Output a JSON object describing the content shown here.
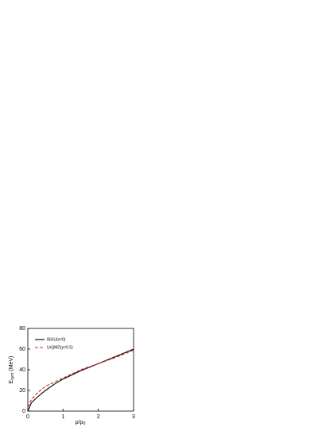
{
  "chart_data": {
    "type": "line",
    "y_label": {
      "main": "E",
      "sub": "sym",
      "unit": "(MeV)"
    },
    "x_label": {
      "main": "ρ/ρ",
      "sub": "0"
    },
    "x": [
      0,
      0.1,
      0.25,
      0.5,
      0.75,
      1,
      1.5,
      2,
      2.5,
      3
    ],
    "series": [
      {
        "name": "IBUU(x=0)",
        "color": "#000000",
        "dash": false,
        "values": [
          0,
          8,
          13,
          20,
          26,
          31,
          39,
          46,
          53,
          60
        ]
      },
      {
        "name": "UrQMD(γ=0.5)",
        "color": "#cc2222",
        "dash": true,
        "values": [
          4,
          11,
          17,
          24,
          28,
          32,
          40,
          46,
          52,
          59
        ]
      }
    ],
    "xlim": [
      0,
      3
    ],
    "xticks": [
      0,
      1,
      2,
      3
    ],
    "ylim": [
      0,
      80
    ],
    "yticks": [
      0,
      20,
      40,
      60,
      80
    ],
    "legend": "upper-left"
  }
}
